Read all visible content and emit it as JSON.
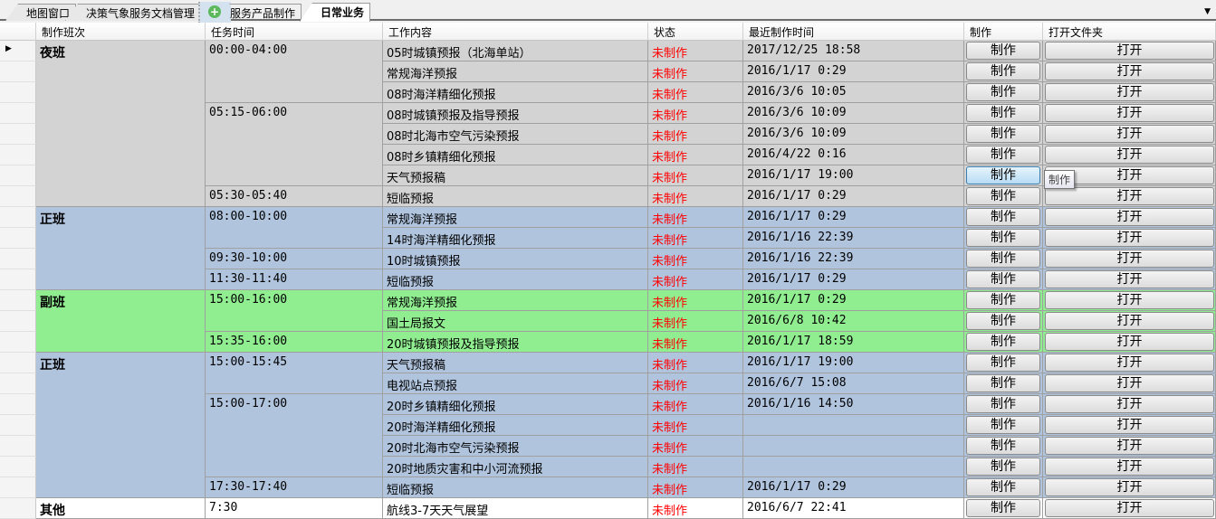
{
  "tabs": [
    {
      "label": "地图窗口"
    },
    {
      "label": "决策气象服务文档管理"
    },
    {
      "label": "服务产品制作"
    },
    {
      "label": "日常业务",
      "active": true
    }
  ],
  "columns": [
    "制作班次",
    "任务时间",
    "工作内容",
    "状态",
    "最近制作时间",
    "制作",
    "打开文件夹"
  ],
  "button_make": "制作",
  "button_open": "打开",
  "tooltip": "制作",
  "colors": {
    "night": "#d3d3d3",
    "regular": "#b0c4de",
    "deputy": "#90ee90",
    "other": "#ffffff",
    "status": "#ff0000"
  },
  "groups": [
    {
      "shift": "夜班",
      "color": "#d3d3d3",
      "slots": [
        {
          "time": "00:00-04:00",
          "items": [
            {
              "content": "05时城镇预报（北海单站）",
              "status": "未制作",
              "last": "2017/12/25 18:58"
            },
            {
              "content": "常规海洋预报",
              "status": "未制作",
              "last": "2016/1/17 0:29"
            },
            {
              "content": "08时海洋精细化预报",
              "status": "未制作",
              "last": "2016/3/6 10:05"
            }
          ]
        },
        {
          "time": "05:15-06:00",
          "items": [
            {
              "content": "08时城镇预报及指导预报",
              "status": "未制作",
              "last": "2016/3/6 10:09"
            },
            {
              "content": "08时北海市空气污染预报",
              "status": "未制作",
              "last": "2016/3/6 10:09"
            },
            {
              "content": "08时乡镇精细化预报",
              "status": "未制作",
              "last": "2016/4/22 0:16"
            },
            {
              "content": "天气预报稿",
              "status": "未制作",
              "last": "2016/1/17 19:00",
              "hover": true
            }
          ]
        },
        {
          "time": "05:30-05:40",
          "items": [
            {
              "content": "短临预报",
              "status": "未制作",
              "last": "2016/1/17 0:29"
            }
          ]
        }
      ]
    },
    {
      "shift": "正班",
      "color": "#b0c4de",
      "slots": [
        {
          "time": "08:00-10:00",
          "items": [
            {
              "content": "常规海洋预报",
              "status": "未制作",
              "last": "2016/1/17 0:29"
            },
            {
              "content": "14时海洋精细化预报",
              "status": "未制作",
              "last": "2016/1/16 22:39"
            }
          ]
        },
        {
          "time": "09:30-10:00",
          "items": [
            {
              "content": "10时城镇预报",
              "status": "未制作",
              "last": "2016/1/16 22:39"
            }
          ]
        },
        {
          "time": "11:30-11:40",
          "items": [
            {
              "content": "短临预报",
              "status": "未制作",
              "last": "2016/1/17 0:29"
            }
          ]
        }
      ]
    },
    {
      "shift": "副班",
      "color": "#90ee90",
      "slots": [
        {
          "time": "15:00-16:00",
          "items": [
            {
              "content": "常规海洋预报",
              "status": "未制作",
              "last": "2016/1/17 0:29"
            },
            {
              "content": "国土局报文",
              "status": "未制作",
              "last": "2016/6/8 10:42"
            }
          ]
        },
        {
          "time": "15:35-16:00",
          "items": [
            {
              "content": "20时城镇预报及指导预报",
              "status": "未制作",
              "last": "2016/1/17 18:59"
            }
          ]
        }
      ]
    },
    {
      "shift": "正班",
      "color": "#b0c4de",
      "slots": [
        {
          "time": "15:00-15:45",
          "items": [
            {
              "content": "天气预报稿",
              "status": "未制作",
              "last": "2016/1/17 19:00"
            },
            {
              "content": "电视站点预报",
              "status": "未制作",
              "last": "2016/6/7 15:08"
            }
          ]
        },
        {
          "time": "15:00-17:00",
          "items": [
            {
              "content": "20时乡镇精细化预报",
              "status": "未制作",
              "last": "2016/1/16 14:50"
            },
            {
              "content": "20时海洋精细化预报",
              "status": "未制作",
              "last": ""
            },
            {
              "content": "20时北海市空气污染预报",
              "status": "未制作",
              "last": ""
            },
            {
              "content": "20时地质灾害和中小河流预报",
              "status": "未制作",
              "last": ""
            }
          ]
        },
        {
          "time": "17:30-17:40",
          "items": [
            {
              "content": "短临预报",
              "status": "未制作",
              "last": "2016/1/17 0:29"
            }
          ]
        }
      ]
    },
    {
      "shift": "其他",
      "color": "#ffffff",
      "slots": [
        {
          "time": "7:30",
          "items": [
            {
              "content": "航线3-7天天气展望",
              "status": "未制作",
              "last": "2016/6/7 22:41"
            }
          ]
        }
      ]
    }
  ]
}
